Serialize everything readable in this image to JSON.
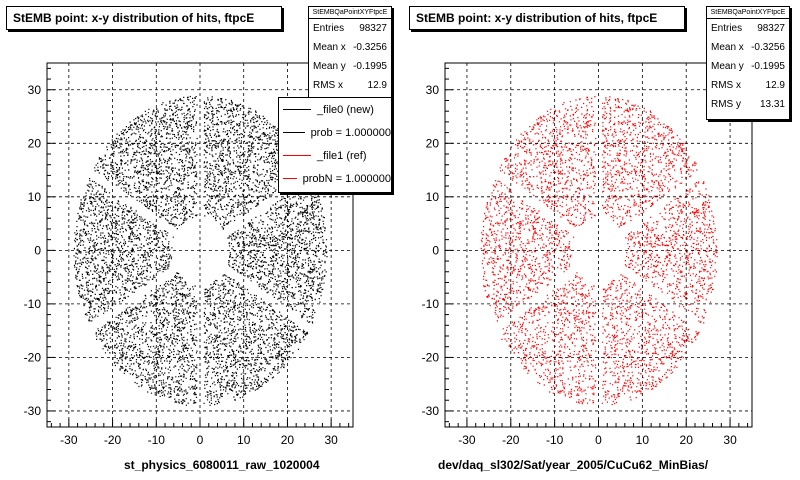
{
  "chart_data": [
    {
      "type": "scatter",
      "title": "StEMB point: x-y distribution of hits, ftpcE",
      "xlabel": "st_physics_6080011_raw_1020004",
      "ylabel": "",
      "xlim": [
        -35,
        35
      ],
      "ylim": [
        -33,
        35
      ],
      "xticks": [
        -30,
        -20,
        -10,
        0,
        10,
        20,
        30
      ],
      "yticks": [
        -30,
        -20,
        -10,
        0,
        10,
        20,
        30
      ],
      "grid": true,
      "point_color": "#000000",
      "distribution": {
        "inner_radius": 6.5,
        "outer_radius_x": 29,
        "outer_radius_y": 29,
        "gaps": 6
      },
      "stats": {
        "header": "StEMBQaPointXYFtpcE",
        "rows": [
          {
            "label": "Entries",
            "value": "98327"
          },
          {
            "label": "Mean x",
            "value": "-0.3256"
          },
          {
            "label": "Mean y",
            "value": "-0.1995"
          },
          {
            "label": "RMS x",
            "value": "12.9"
          }
        ]
      },
      "legend": [
        {
          "text": "_file0 (new)",
          "color": "#000000"
        },
        {
          "text": "prob = 1.000000",
          "color": "#000000"
        },
        {
          "text": "_file1 (ref)",
          "color": "#ff0000"
        },
        {
          "text": "probN = 1.000000",
          "color": "#ff0000"
        }
      ]
    },
    {
      "type": "scatter",
      "title": "StEMB point: x-y distribution of hits, ftpcE",
      "xlabel": "dev/daq_sl302/Sat/year_2005/CuCu62_MinBias/",
      "ylabel": "",
      "xlim": [
        -35,
        35
      ],
      "ylim": [
        -33,
        35
      ],
      "xticks": [
        -30,
        -20,
        -10,
        0,
        10,
        20,
        30
      ],
      "yticks": [
        -30,
        -20,
        -10,
        0,
        10,
        20,
        30
      ],
      "grid": true,
      "point_color": "#ff0000",
      "distribution": {
        "inner_radius": 6.5,
        "outer_radius_x": 27,
        "outer_radius_y": 29,
        "gaps": 6
      },
      "stats": {
        "header": "StEMBQaPointXYFtpcE",
        "rows": [
          {
            "label": "Entries",
            "value": "98327"
          },
          {
            "label": "Mean x",
            "value": "-0.3256"
          },
          {
            "label": "Mean y",
            "value": "-0.1995"
          },
          {
            "label": "RMS x",
            "value": "12.9"
          },
          {
            "label": "RMS y",
            "value": "13.31"
          }
        ]
      }
    }
  ]
}
